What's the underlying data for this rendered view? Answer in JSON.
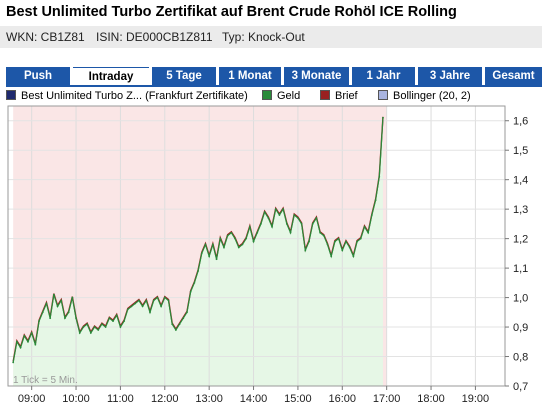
{
  "header": {
    "title": "Best Unlimited Turbo Zertifikat auf Brent Crude Rohöl ICE Rolling",
    "wkn": "WKN: CB1Z81",
    "isin": "ISIN: DE000CB1Z811",
    "typ": "Typ: Knock-Out"
  },
  "tabs": [
    {
      "label": "Push",
      "active": false
    },
    {
      "label": "Intraday",
      "active": true
    },
    {
      "label": "5 Tage",
      "active": false
    },
    {
      "label": "1 Monat",
      "active": false
    },
    {
      "label": "3 Monate",
      "active": false
    },
    {
      "label": "1 Jahr",
      "active": false
    },
    {
      "label": "3 Jahre",
      "active": false
    },
    {
      "label": "Gesamt",
      "active": false
    }
  ],
  "legend": [
    {
      "label": "Best Unlimited Turbo Z... (Frankfurt Zertifikate)",
      "color": "#1f2a6e"
    },
    {
      "label": "Geld",
      "color": "#2a8a3a"
    },
    {
      "label": "Brief",
      "color": "#9a2020"
    },
    {
      "label": "Bollinger (20, 2)",
      "color": "#a9b4e0"
    }
  ],
  "chart_data": {
    "type": "line",
    "x_ticks": [
      "09:00",
      "10:00",
      "11:00",
      "12:00",
      "13:00",
      "14:00",
      "15:00",
      "16:00",
      "17:00",
      "18:00",
      "19:00"
    ],
    "y_ticks": [
      "1,6",
      "1,5",
      "1,4",
      "1,3",
      "1,2",
      "1,1",
      "1,0",
      "0,9",
      "0,8",
      "0,7"
    ],
    "ylim": [
      0.7,
      1.65
    ],
    "xlim": [
      "08:28",
      "19:40"
    ],
    "annotation": "1 Tick = 5 Min.",
    "trading_window": [
      "08:35",
      "17:00"
    ],
    "colors": {
      "bid_fill": "#e6f7e6",
      "ask_bg": "#fae6e6",
      "bid_line": "#2a8a3a",
      "ask_line": "#9a2020"
    },
    "series": [
      {
        "name": "Geld",
        "x": [
          "08:35",
          "08:40",
          "08:45",
          "08:50",
          "08:55",
          "09:00",
          "09:05",
          "09:10",
          "09:15",
          "09:20",
          "09:25",
          "09:30",
          "09:35",
          "09:40",
          "09:45",
          "09:50",
          "09:55",
          "10:00",
          "10:05",
          "10:10",
          "10:15",
          "10:20",
          "10:25",
          "10:30",
          "10:35",
          "10:40",
          "10:45",
          "10:50",
          "10:55",
          "11:00",
          "11:05",
          "11:10",
          "11:15",
          "11:20",
          "11:25",
          "11:30",
          "11:35",
          "11:40",
          "11:45",
          "11:50",
          "11:55",
          "12:00",
          "12:05",
          "12:10",
          "12:15",
          "12:20",
          "12:25",
          "12:30",
          "12:35",
          "12:40",
          "12:45",
          "12:50",
          "12:55",
          "13:00",
          "13:05",
          "13:10",
          "13:15",
          "13:20",
          "13:25",
          "13:30",
          "13:35",
          "13:40",
          "13:45",
          "13:50",
          "13:55",
          "14:00",
          "14:05",
          "14:10",
          "14:15",
          "14:20",
          "14:25",
          "14:30",
          "14:35",
          "14:40",
          "14:45",
          "14:50",
          "14:55",
          "15:00",
          "15:05",
          "15:10",
          "15:15",
          "15:20",
          "15:25",
          "15:30",
          "15:35",
          "15:40",
          "15:45",
          "15:50",
          "15:55",
          "16:00",
          "16:05",
          "16:10",
          "16:15",
          "16:20",
          "16:25",
          "16:30",
          "16:35",
          "16:40",
          "16:45",
          "16:50"
        ],
        "values": [
          0.78,
          0.85,
          0.83,
          0.87,
          0.85,
          0.88,
          0.84,
          0.92,
          0.95,
          0.98,
          0.93,
          1.01,
          0.97,
          0.99,
          0.93,
          0.95,
          1.0,
          0.93,
          0.88,
          0.9,
          0.91,
          0.88,
          0.9,
          0.89,
          0.91,
          0.9,
          0.93,
          0.92,
          0.94,
          0.9,
          0.92,
          0.96,
          0.97,
          0.98,
          0.99,
          0.97,
          0.99,
          0.95,
          0.99,
          1.0,
          0.97,
          1.0,
          0.99,
          0.91,
          0.89,
          0.91,
          0.93,
          0.95,
          1.02,
          1.05,
          1.09,
          1.15,
          1.18,
          1.14,
          1.18,
          1.13,
          1.2,
          1.17,
          1.21,
          1.22,
          1.2,
          1.17,
          1.18,
          1.2,
          1.24,
          1.19,
          1.22,
          1.25,
          1.29,
          1.27,
          1.24,
          1.3,
          1.28,
          1.3,
          1.25,
          1.22,
          1.28,
          1.27,
          1.25,
          1.16,
          1.19,
          1.25,
          1.27,
          1.22,
          1.21,
          1.18,
          1.14,
          1.19,
          1.2,
          1.16,
          1.19,
          1.17,
          1.14,
          1.19,
          1.2,
          1.24,
          1.22,
          1.28,
          1.33,
          1.41
        ]
      }
    ],
    "final_point": {
      "x": "16:55",
      "value": 1.61
    }
  }
}
